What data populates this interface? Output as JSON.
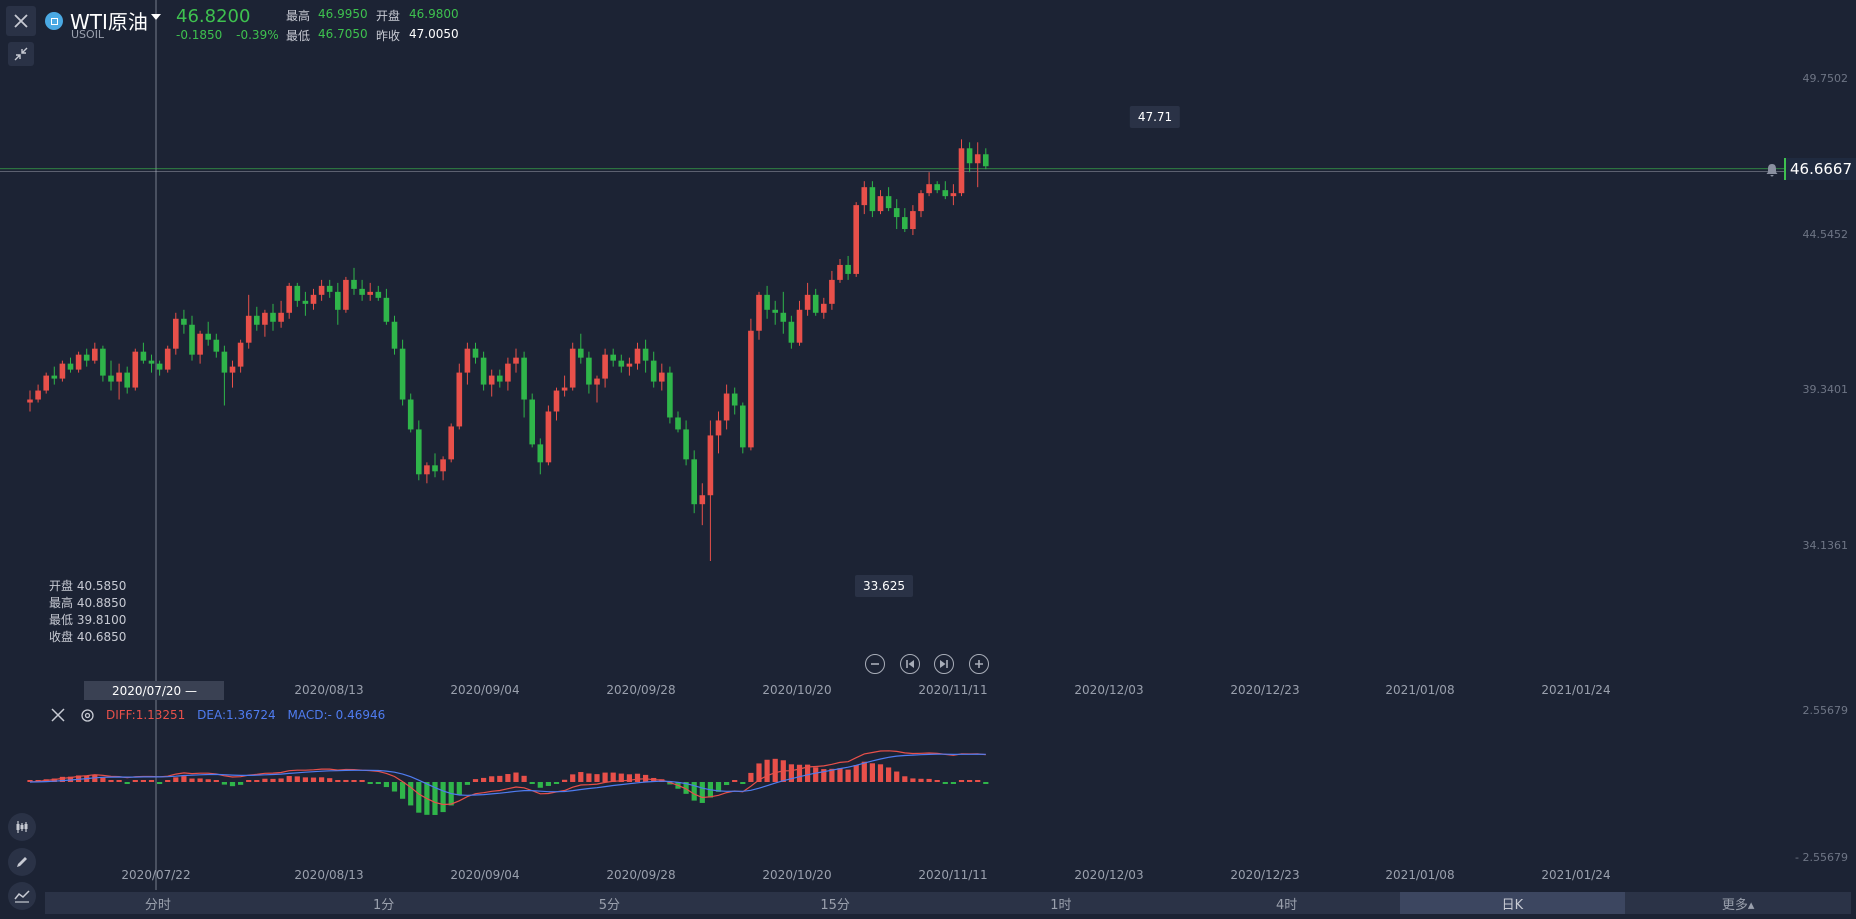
{
  "header": {
    "symbol_name": "WTI原油",
    "symbol_code": "USOIL",
    "last_price": "46.8200",
    "change": "-0.1850",
    "change_pct": "-0.39%",
    "stats": {
      "high_label": "最高",
      "high_value": "46.9950",
      "open_label": "开盘",
      "open_value": "46.9800",
      "low_label": "最低",
      "low_value": "46.7050",
      "prev_close_label": "昨收",
      "prev_close_value": "47.0050"
    }
  },
  "crosshair": {
    "open": "开盘 40.5850",
    "high": "最高 40.8850",
    "low": "最低 39.8100",
    "close": "收盘 40.6850",
    "date": "2020/07/20 —"
  },
  "price_axis": [
    "49.7502",
    "44.5452",
    "39.3401",
    "34.1361"
  ],
  "current_price_tag": "46.6667",
  "callouts": {
    "max": "47.71",
    "min": "33.625"
  },
  "x_axis": [
    "2020/08/13",
    "2020/09/04",
    "2020/09/28",
    "2020/10/20",
    "2020/11/11",
    "2020/12/03",
    "2020/12/23",
    "2021/01/08",
    "2021/01/24"
  ],
  "x_axis_bottom": [
    "2020/07/22",
    "2020/08/13",
    "2020/09/04",
    "2020/09/28",
    "2020/10/20",
    "2020/11/11",
    "2020/12/03",
    "2020/12/23",
    "2021/01/08",
    "2021/01/24"
  ],
  "macd": {
    "diff": "DIFF:1.13251",
    "dea": "DEA:1.36724",
    "macd": "MACD:- 0.46946",
    "axis_top": "2.55679",
    "axis_bottom": "- 2.55679"
  },
  "tabs": [
    "分时",
    "1分",
    "5分",
    "15分",
    "1时",
    "4时",
    "日K",
    "更多▴"
  ],
  "active_tab": "日K",
  "colors": {
    "up": "#e8504a",
    "down": "#2fb54a",
    "bg": "#1c2334"
  },
  "chart_data": {
    "type": "candlestick",
    "ohlc": [
      [
        38.9,
        39.3,
        38.6,
        39.0
      ],
      [
        39.0,
        39.5,
        38.9,
        39.3
      ],
      [
        39.3,
        39.9,
        39.2,
        39.8
      ],
      [
        39.8,
        40.1,
        39.5,
        39.7
      ],
      [
        39.7,
        40.3,
        39.6,
        40.2
      ],
      [
        40.2,
        40.4,
        39.9,
        40.0
      ],
      [
        40.0,
        40.6,
        39.9,
        40.5
      ],
      [
        40.5,
        40.7,
        40.1,
        40.3
      ],
      [
        40.3,
        40.9,
        40.2,
        40.7
      ],
      [
        40.7,
        40.8,
        39.6,
        39.8
      ],
      [
        39.8,
        40.3,
        39.3,
        39.6
      ],
      [
        39.6,
        40.2,
        39.0,
        39.9
      ],
      [
        39.9,
        40.1,
        39.2,
        39.4
      ],
      [
        39.4,
        40.7,
        39.3,
        40.6
      ],
      [
        40.6,
        40.9,
        40.2,
        40.3
      ],
      [
        40.3,
        40.5,
        39.9,
        40.2
      ],
      [
        40.2,
        40.3,
        39.8,
        40.0
      ],
      [
        40.0,
        40.8,
        39.9,
        40.7
      ],
      [
        40.7,
        41.9,
        40.5,
        41.7
      ],
      [
        41.7,
        42.0,
        41.2,
        41.5
      ],
      [
        41.5,
        41.8,
        40.3,
        40.5
      ],
      [
        40.5,
        41.3,
        40.2,
        41.2
      ],
      [
        41.2,
        41.6,
        40.8,
        41.0
      ],
      [
        41.0,
        41.2,
        40.4,
        40.6
      ],
      [
        40.6,
        40.8,
        38.8,
        39.9
      ],
      [
        39.9,
        40.3,
        39.4,
        40.1
      ],
      [
        40.1,
        41.0,
        39.9,
        40.9
      ],
      [
        40.9,
        42.5,
        40.7,
        41.8
      ],
      [
        41.8,
        42.1,
        41.3,
        41.5
      ],
      [
        41.5,
        42.0,
        41.1,
        41.9
      ],
      [
        41.9,
        42.2,
        41.3,
        41.6
      ],
      [
        41.6,
        42.3,
        41.4,
        41.9
      ],
      [
        41.9,
        42.9,
        41.7,
        42.8
      ],
      [
        42.8,
        42.9,
        42.1,
        42.3
      ],
      [
        42.3,
        42.6,
        41.8,
        42.2
      ],
      [
        42.2,
        42.7,
        42.0,
        42.5
      ],
      [
        42.5,
        43.0,
        42.3,
        42.8
      ],
      [
        42.8,
        43.0,
        42.4,
        42.6
      ],
      [
        42.6,
        42.9,
        41.5,
        42.0
      ],
      [
        42.0,
        43.1,
        41.9,
        43.0
      ],
      [
        43.0,
        43.4,
        42.5,
        42.7
      ],
      [
        42.7,
        43.0,
        42.3,
        42.5
      ],
      [
        42.5,
        42.9,
        42.3,
        42.6
      ],
      [
        42.6,
        42.8,
        42.3,
        42.4
      ],
      [
        42.4,
        42.7,
        41.5,
        41.6
      ],
      [
        41.6,
        41.8,
        40.5,
        40.7
      ],
      [
        40.7,
        41.0,
        38.8,
        39.0
      ],
      [
        39.0,
        39.2,
        37.9,
        38.0
      ],
      [
        38.0,
        38.3,
        36.3,
        36.5
      ],
      [
        36.5,
        36.9,
        36.2,
        36.8
      ],
      [
        36.8,
        37.2,
        36.4,
        36.6
      ],
      [
        36.6,
        37.1,
        36.3,
        37.0
      ],
      [
        37.0,
        38.2,
        36.9,
        38.1
      ],
      [
        38.1,
        40.2,
        38.0,
        39.9
      ],
      [
        39.9,
        40.9,
        39.5,
        40.7
      ],
      [
        40.7,
        40.9,
        40.2,
        40.4
      ],
      [
        40.4,
        40.6,
        39.3,
        39.5
      ],
      [
        39.5,
        40.0,
        39.1,
        39.8
      ],
      [
        39.8,
        40.0,
        39.4,
        39.6
      ],
      [
        39.6,
        40.4,
        39.3,
        40.2
      ],
      [
        40.2,
        40.7,
        39.9,
        40.4
      ],
      [
        40.4,
        40.6,
        38.4,
        39.0
      ],
      [
        39.0,
        39.2,
        37.4,
        37.5
      ],
      [
        37.5,
        37.7,
        36.5,
        36.9
      ],
      [
        36.9,
        38.8,
        36.8,
        38.6
      ],
      [
        38.6,
        39.4,
        38.3,
        39.3
      ],
      [
        39.3,
        39.8,
        39.1,
        39.4
      ],
      [
        39.4,
        40.9,
        39.3,
        40.7
      ],
      [
        40.7,
        41.2,
        40.2,
        40.4
      ],
      [
        40.4,
        40.6,
        39.2,
        39.5
      ],
      [
        39.5,
        39.8,
        38.9,
        39.7
      ],
      [
        39.7,
        40.7,
        39.4,
        40.5
      ],
      [
        40.5,
        40.7,
        40.1,
        40.3
      ],
      [
        40.3,
        40.5,
        39.9,
        40.1
      ],
      [
        40.1,
        40.4,
        39.8,
        40.2
      ],
      [
        40.2,
        40.9,
        40.0,
        40.7
      ],
      [
        40.7,
        41.0,
        39.9,
        40.3
      ],
      [
        40.3,
        40.6,
        39.4,
        39.6
      ],
      [
        39.6,
        40.2,
        39.3,
        39.9
      ],
      [
        39.9,
        40.1,
        38.2,
        38.4
      ],
      [
        38.4,
        38.6,
        37.9,
        38.0
      ],
      [
        38.0,
        38.3,
        36.8,
        37.0
      ],
      [
        37.0,
        37.3,
        35.2,
        35.5
      ],
      [
        35.5,
        36.2,
        34.8,
        35.8
      ],
      [
        35.8,
        38.3,
        33.6,
        37.8
      ],
      [
        37.8,
        38.6,
        37.2,
        38.3
      ],
      [
        38.3,
        39.5,
        38.0,
        39.2
      ],
      [
        39.2,
        39.4,
        38.5,
        38.8
      ],
      [
        38.8,
        38.9,
        37.2,
        37.4
      ],
      [
        37.4,
        41.7,
        37.3,
        41.3
      ],
      [
        41.3,
        42.6,
        41.0,
        42.5
      ],
      [
        42.5,
        42.8,
        41.7,
        42.0
      ],
      [
        42.0,
        42.3,
        41.5,
        41.9
      ],
      [
        41.9,
        42.6,
        41.2,
        41.6
      ],
      [
        41.6,
        41.8,
        40.7,
        40.9
      ],
      [
        40.9,
        42.3,
        40.8,
        42.0
      ],
      [
        42.0,
        42.9,
        41.8,
        42.5
      ],
      [
        42.5,
        42.7,
        41.8,
        41.9
      ],
      [
        41.9,
        42.4,
        41.7,
        42.2
      ],
      [
        42.2,
        43.3,
        42.0,
        43.0
      ],
      [
        43.0,
        43.7,
        42.9,
        43.5
      ],
      [
        43.5,
        43.8,
        43.0,
        43.2
      ],
      [
        43.2,
        45.6,
        43.1,
        45.5
      ],
      [
        45.5,
        46.3,
        45.2,
        46.1
      ],
      [
        46.1,
        46.3,
        45.1,
        45.3
      ],
      [
        45.3,
        46.0,
        45.2,
        45.8
      ],
      [
        45.8,
        46.1,
        45.3,
        45.4
      ],
      [
        45.4,
        45.7,
        44.7,
        45.1
      ],
      [
        45.1,
        45.4,
        44.6,
        44.7
      ],
      [
        44.7,
        45.5,
        44.5,
        45.3
      ],
      [
        45.3,
        46.0,
        45.1,
        45.9
      ],
      [
        45.9,
        46.6,
        45.8,
        46.2
      ],
      [
        46.2,
        46.3,
        45.9,
        46.0
      ],
      [
        46.0,
        46.3,
        45.7,
        45.8
      ],
      [
        45.8,
        46.2,
        45.5,
        45.9
      ],
      [
        45.9,
        47.7,
        45.8,
        47.4
      ],
      [
        47.4,
        47.6,
        46.6,
        46.9
      ],
      [
        46.9,
        47.6,
        46.1,
        47.2
      ],
      [
        47.2,
        47.4,
        46.7,
        46.8
      ]
    ],
    "y_ticks": [
      "49.7502",
      "44.5452",
      "39.3401",
      "34.1361"
    ],
    "x_ticks": [
      "2020/07/22",
      "2020/08/13",
      "2020/09/04",
      "2020/09/28",
      "2020/10/20",
      "2020/11/11",
      "2020/12/03",
      "2020/12/23",
      "2021/01/08",
      "2021/01/24"
    ],
    "max_label": "47.71",
    "min_label": "33.625",
    "current": "46.6667"
  }
}
